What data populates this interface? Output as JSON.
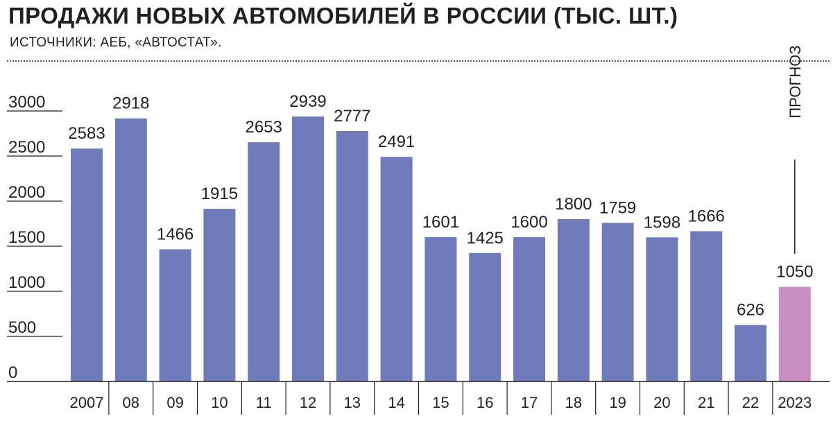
{
  "header": {
    "title": "ПРОДАЖИ НОВЫХ АВТОМОБИЛЕЙ В РОССИИ (ТЫС. ШТ.)",
    "subtitle": "ИСТОЧНИКИ: АЕБ, «АВТОСТАТ»."
  },
  "chart_data": {
    "type": "bar",
    "title": "ПРОДАЖИ НОВЫХ АВТОМОБИЛЕЙ В РОССИИ (ТЫС. ШТ.)",
    "subtitle": "ИСТОЧНИКИ: АЕБ, «АВТОСТАТ».",
    "xlabel": "",
    "ylabel": "",
    "categories": [
      "2007",
      "08",
      "09",
      "10",
      "11",
      "12",
      "13",
      "14",
      "15",
      "16",
      "17",
      "18",
      "19",
      "20",
      "21",
      "22",
      "2023"
    ],
    "values": [
      2583,
      2918,
      1466,
      1915,
      2653,
      2939,
      2777,
      2491,
      1601,
      1425,
      1600,
      1800,
      1759,
      1598,
      1666,
      626,
      1050
    ],
    "value_labels": [
      "2583",
      "2918",
      "1466",
      "1915",
      "2653",
      "2939",
      "2777",
      "2491",
      "1601",
      "1425",
      "1600",
      "1800",
      "1759",
      "1598",
      "1666",
      "626",
      "1050"
    ],
    "ylim": [
      0,
      3000
    ],
    "yticks": [
      0,
      500,
      1000,
      1500,
      2000,
      2500,
      3000
    ],
    "ytick_labels": [
      "0",
      "500",
      "1000",
      "1500",
      "2000",
      "2500",
      "3000"
    ],
    "grid": false,
    "legend": "none",
    "forecast_index": 16,
    "forecast_label": "ПРОГНОЗ",
    "colors": {
      "actual": "#6f7bba",
      "forecast": "#c98fc2",
      "text": "#231f20"
    }
  }
}
